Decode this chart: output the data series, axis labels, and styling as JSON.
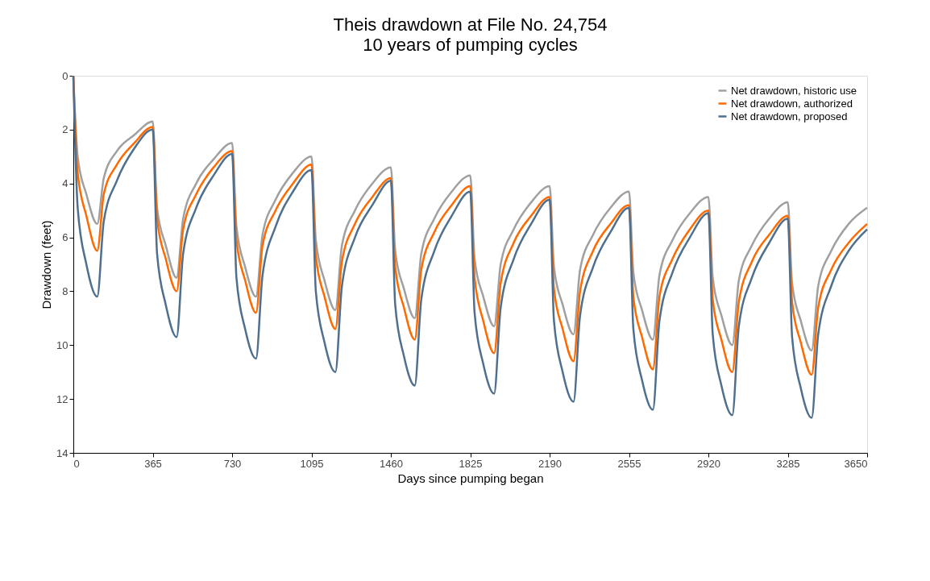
{
  "chart_data": {
    "type": "line",
    "title": "Theis drawdown at File No. 24,754",
    "subtitle": "10 years of pumping cycles",
    "xlabel": "Days since pumping began",
    "ylabel": "Drawdown (feet)",
    "x": [
      0,
      20,
      60,
      110,
      140,
      200,
      280,
      365,
      385,
      425,
      475,
      505,
      565,
      645,
      730,
      750,
      790,
      840,
      870,
      930,
      1010,
      1095,
      1115,
      1155,
      1205,
      1235,
      1295,
      1375,
      1460,
      1480,
      1520,
      1570,
      1600,
      1660,
      1740,
      1825,
      1845,
      1885,
      1935,
      1965,
      2025,
      2105,
      2190,
      2210,
      2250,
      2300,
      2330,
      2390,
      2470,
      2555,
      2575,
      2615,
      2665,
      2695,
      2755,
      2835,
      2920,
      2940,
      2980,
      3030,
      3060,
      3120,
      3200,
      3285,
      3305,
      3345,
      3395,
      3425,
      3485,
      3565,
      3650
    ],
    "series": [
      {
        "name": "Net drawdown, historic use",
        "color": "#a0a0a0",
        "values": [
          0,
          3.0,
          4.4,
          5.5,
          3.8,
          2.8,
          2.2,
          1.7,
          4.9,
          6.3,
          7.5,
          5.3,
          4.0,
          3.1,
          2.5,
          5.6,
          7.1,
          8.2,
          5.9,
          4.6,
          3.6,
          3.0,
          6.1,
          7.6,
          8.7,
          6.3,
          5.0,
          4.0,
          3.4,
          6.5,
          7.9,
          9.0,
          6.6,
          5.3,
          4.3,
          3.7,
          6.8,
          8.2,
          9.3,
          7.0,
          5.7,
          4.7,
          4.1,
          7.1,
          8.5,
          9.6,
          7.2,
          5.9,
          4.9,
          4.3,
          7.3,
          8.7,
          9.8,
          7.4,
          6.1,
          5.1,
          4.5,
          7.5,
          8.9,
          10.0,
          7.6,
          6.3,
          5.3,
          4.7,
          7.7,
          9.1,
          10.2,
          7.8,
          6.5,
          5.5,
          4.9
        ]
      },
      {
        "name": "Net drawdown, authorized",
        "color": "#ff6a00",
        "values": [
          0,
          3.6,
          5.2,
          6.5,
          4.4,
          3.3,
          2.5,
          1.9,
          5.3,
          6.8,
          8.0,
          5.7,
          4.4,
          3.4,
          2.8,
          6.1,
          7.6,
          8.8,
          6.3,
          5.0,
          4.0,
          3.3,
          6.7,
          8.2,
          9.4,
          6.9,
          5.5,
          4.5,
          3.8,
          7.1,
          8.6,
          9.8,
          7.2,
          5.8,
          4.8,
          4.1,
          7.5,
          9.1,
          10.3,
          7.7,
          6.2,
          5.2,
          4.5,
          7.9,
          9.4,
          10.6,
          8.0,
          6.5,
          5.5,
          4.8,
          8.2,
          9.7,
          10.9,
          8.2,
          6.8,
          5.7,
          5.0,
          8.3,
          9.8,
          11.0,
          8.4,
          6.9,
          5.9,
          5.2,
          8.4,
          9.9,
          11.1,
          8.6,
          7.2,
          6.2,
          5.5
        ]
      },
      {
        "name": "Net drawdown, proposed",
        "color": "#4f6f8f",
        "values": [
          0,
          4.9,
          7.0,
          8.2,
          5.4,
          3.9,
          2.7,
          2.0,
          6.6,
          8.5,
          9.7,
          6.6,
          4.9,
          3.7,
          2.9,
          7.5,
          9.4,
          10.5,
          7.4,
          5.6,
          4.3,
          3.5,
          8.0,
          9.9,
          11.0,
          7.8,
          6.0,
          4.8,
          3.9,
          8.5,
          10.4,
          11.5,
          8.3,
          6.5,
          5.2,
          4.3,
          8.8,
          10.7,
          11.8,
          8.6,
          6.8,
          5.5,
          4.6,
          9.1,
          11.0,
          12.1,
          8.9,
          7.1,
          5.8,
          4.9,
          9.4,
          11.3,
          12.4,
          9.1,
          7.3,
          6.0,
          5.1,
          9.6,
          11.5,
          12.6,
          9.3,
          7.5,
          6.2,
          5.3,
          9.7,
          11.6,
          12.7,
          9.6,
          7.8,
          6.5,
          5.7
        ]
      }
    ],
    "xlim": [
      0,
      3650
    ],
    "xticks": [
      0,
      365,
      730,
      1095,
      1460,
      1825,
      2190,
      2555,
      2920,
      3285,
      3650
    ],
    "ylim": [
      14,
      0
    ],
    "yticks": [
      0,
      2,
      4,
      6,
      8,
      10,
      12,
      14
    ],
    "legend": "top right",
    "grid": false,
    "line_style": "solid"
  }
}
